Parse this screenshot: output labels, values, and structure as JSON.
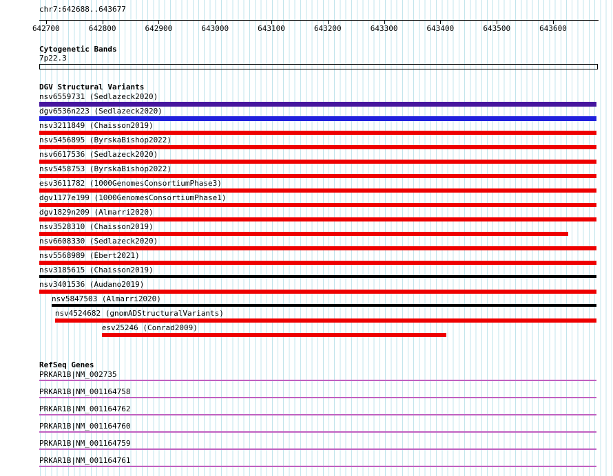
{
  "region": {
    "position": "chr7:642688..643677",
    "chrom": "chr7",
    "start": 642688,
    "end": 643677,
    "ruler_ticks": [
      "642700",
      "642800",
      "642900",
      "643000",
      "643100",
      "643200",
      "643300",
      "643400",
      "643500",
      "643600"
    ]
  },
  "cytobands": {
    "title": "Cytogenetic Bands",
    "bands": [
      {
        "name": "7p22.3",
        "start": 642688,
        "end": 643677
      }
    ]
  },
  "dgv": {
    "title": "DGV Structural Variants",
    "variants": [
      {
        "label": "nsv6559731 (Sedlazeck2020)",
        "start": 642688,
        "end": 643677,
        "kind": "inversion",
        "color": "#46169E"
      },
      {
        "label": "dgv6536n223 (Sedlazeck2020)",
        "start": 642688,
        "end": 643677,
        "kind": "gain",
        "color": "#2020DD"
      },
      {
        "label": "nsv3211849 (Chaisson2019)",
        "start": 642688,
        "end": 643677,
        "kind": "loss",
        "color": "#EE0000"
      },
      {
        "label": "nsv5456895 (ByrskaBishop2022)",
        "start": 642688,
        "end": 643677,
        "kind": "loss",
        "color": "#EE0000"
      },
      {
        "label": "nsv6617536 (Sedlazeck2020)",
        "start": 642688,
        "end": 643677,
        "kind": "loss",
        "color": "#EE0000"
      },
      {
        "label": "nsv5458753 (ByrskaBishop2022)",
        "start": 642688,
        "end": 643677,
        "kind": "loss",
        "color": "#EE0000"
      },
      {
        "label": "esv3611782 (1000GenomesConsortiumPhase3)",
        "start": 642688,
        "end": 643677,
        "kind": "loss",
        "color": "#EE0000"
      },
      {
        "label": "dgv1177e199 (1000GenomesConsortiumPhase1)",
        "start": 642688,
        "end": 643677,
        "kind": "loss",
        "color": "#EE0000"
      },
      {
        "label": "dgv1829n209 (Almarri2020)",
        "start": 642688,
        "end": 643677,
        "kind": "loss",
        "color": "#EE0000"
      },
      {
        "label": "nsv3528310 (Chaisson2019)",
        "start": 642688,
        "end": 643627,
        "kind": "loss",
        "color": "#EE0000"
      },
      {
        "label": "nsv6608330 (Sedlazeck2020)",
        "start": 642688,
        "end": 643677,
        "kind": "loss",
        "color": "#EE0000"
      },
      {
        "label": "nsv5568989 (Ebert2021)",
        "start": 642688,
        "end": 643677,
        "kind": "loss",
        "color": "#EE0000"
      },
      {
        "label": "nsv3185615 (Chaisson2019)",
        "start": 642688,
        "end": 643677,
        "kind": "other",
        "color": "#000000"
      },
      {
        "label": "nsv3401536 (Audano2019)",
        "start": 642688,
        "end": 643677,
        "kind": "loss",
        "color": "#EE0000"
      },
      {
        "label": "nsv5847503 (Almarri2020)",
        "start": 642710,
        "end": 643677,
        "kind": "other",
        "color": "#000000"
      },
      {
        "label": "nsv4524682 (gnomADStructuralVariants)",
        "start": 642716,
        "end": 643677,
        "kind": "loss",
        "color": "#EE0000"
      },
      {
        "label": "esv25246 (Conrad2009)",
        "start": 642799,
        "end": 643410,
        "kind": "loss",
        "color": "#EE0000"
      }
    ]
  },
  "refseq": {
    "title": "RefSeq Genes",
    "gene_color": "#C060C0",
    "genes": [
      {
        "label": "PRKAR1B|NM_002735",
        "start": 642688,
        "end": 643677
      },
      {
        "label": "PRKAR1B|NM_001164758",
        "start": 642688,
        "end": 643677
      },
      {
        "label": "PRKAR1B|NM_001164762",
        "start": 642688,
        "end": 643677
      },
      {
        "label": "PRKAR1B|NM_001164760",
        "start": 642688,
        "end": 643677
      },
      {
        "label": "PRKAR1B|NM_001164759",
        "start": 642688,
        "end": 643677
      },
      {
        "label": "PRKAR1B|NM_001164761",
        "start": 642688,
        "end": 643677
      }
    ]
  },
  "colors": {
    "background": "#FFFFFF",
    "grid": "#C3E5EC",
    "text": "#000000",
    "inversion": "#46169E",
    "gain": "#2020DD",
    "loss": "#EE0000",
    "other": "#000000",
    "gene": "#C060C0"
  }
}
